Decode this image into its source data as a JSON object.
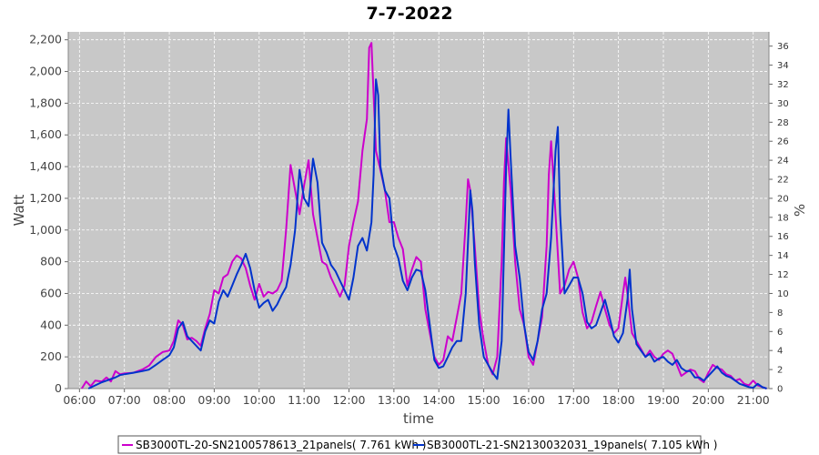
{
  "chart_data": {
    "type": "line",
    "title": "7-7-2022",
    "xlabel": "time",
    "ylabel": "Watt",
    "y2label": "%",
    "xlim": [
      5.75,
      21.35
    ],
    "ylim": [
      0,
      2250
    ],
    "y2lim": [
      0,
      37.5
    ],
    "x_ticks": [
      "06:00",
      "07:00",
      "08:00",
      "09:00",
      "10:00",
      "11:00",
      "12:00",
      "13:00",
      "14:00",
      "15:00",
      "16:00",
      "17:00",
      "18:00",
      "19:00",
      "20:00",
      "21:00"
    ],
    "y_ticks": [
      "0",
      "200",
      "400",
      "600",
      "800",
      "1,000",
      "1,200",
      "1,400",
      "1,600",
      "1,800",
      "2,000",
      "2,200"
    ],
    "y2_ticks": [
      "0",
      "2",
      "4",
      "6",
      "8",
      "10",
      "12",
      "14",
      "16",
      "18",
      "20",
      "22",
      "24",
      "26",
      "28",
      "30",
      "32",
      "34",
      "36"
    ],
    "grid": true,
    "background": "#c8c8c8",
    "legend_position": "bottom",
    "series": [
      {
        "name": "SB3000TL-20-SN2100578613_21panels( 7.761 kWh )",
        "color": "#cc00cc",
        "points": [
          [
            6.05,
            0
          ],
          [
            6.15,
            45
          ],
          [
            6.25,
            15
          ],
          [
            6.35,
            50
          ],
          [
            6.5,
            45
          ],
          [
            6.6,
            70
          ],
          [
            6.7,
            45
          ],
          [
            6.8,
            110
          ],
          [
            6.9,
            90
          ],
          [
            7.0,
            95
          ],
          [
            7.2,
            100
          ],
          [
            7.4,
            120
          ],
          [
            7.55,
            145
          ],
          [
            7.7,
            200
          ],
          [
            7.85,
            230
          ],
          [
            8.0,
            240
          ],
          [
            8.1,
            300
          ],
          [
            8.2,
            430
          ],
          [
            8.3,
            400
          ],
          [
            8.4,
            310
          ],
          [
            8.5,
            320
          ],
          [
            8.6,
            300
          ],
          [
            8.7,
            270
          ],
          [
            8.8,
            380
          ],
          [
            8.9,
            470
          ],
          [
            9.0,
            620
          ],
          [
            9.1,
            600
          ],
          [
            9.2,
            700
          ],
          [
            9.3,
            720
          ],
          [
            9.4,
            800
          ],
          [
            9.5,
            840
          ],
          [
            9.6,
            820
          ],
          [
            9.7,
            760
          ],
          [
            9.8,
            650
          ],
          [
            9.9,
            560
          ],
          [
            10.0,
            660
          ],
          [
            10.1,
            580
          ],
          [
            10.2,
            610
          ],
          [
            10.3,
            600
          ],
          [
            10.4,
            620
          ],
          [
            10.5,
            680
          ],
          [
            10.6,
            1000
          ],
          [
            10.7,
            1410
          ],
          [
            10.8,
            1250
          ],
          [
            10.9,
            1100
          ],
          [
            11.0,
            1280
          ],
          [
            11.1,
            1440
          ],
          [
            11.2,
            1100
          ],
          [
            11.3,
            950
          ],
          [
            11.4,
            800
          ],
          [
            11.5,
            780
          ],
          [
            11.6,
            700
          ],
          [
            11.7,
            640
          ],
          [
            11.8,
            580
          ],
          [
            11.9,
            650
          ],
          [
            12.0,
            900
          ],
          [
            12.1,
            1050
          ],
          [
            12.2,
            1180
          ],
          [
            12.3,
            1500
          ],
          [
            12.4,
            1700
          ],
          [
            12.45,
            2150
          ],
          [
            12.5,
            2180
          ],
          [
            12.55,
            1850
          ],
          [
            12.6,
            1500
          ],
          [
            12.7,
            1380
          ],
          [
            12.8,
            1250
          ],
          [
            12.9,
            1050
          ],
          [
            13.0,
            1050
          ],
          [
            13.1,
            950
          ],
          [
            13.2,
            880
          ],
          [
            13.3,
            650
          ],
          [
            13.4,
            750
          ],
          [
            13.5,
            830
          ],
          [
            13.6,
            800
          ],
          [
            13.7,
            500
          ],
          [
            13.8,
            350
          ],
          [
            13.9,
            200
          ],
          [
            14.0,
            150
          ],
          [
            14.1,
            180
          ],
          [
            14.2,
            330
          ],
          [
            14.3,
            300
          ],
          [
            14.4,
            450
          ],
          [
            14.5,
            600
          ],
          [
            14.6,
            1050
          ],
          [
            14.65,
            1320
          ],
          [
            14.7,
            1250
          ],
          [
            14.8,
            900
          ],
          [
            14.9,
            500
          ],
          [
            15.0,
            300
          ],
          [
            15.1,
            150
          ],
          [
            15.2,
            90
          ],
          [
            15.3,
            200
          ],
          [
            15.4,
            800
          ],
          [
            15.45,
            1300
          ],
          [
            15.5,
            1580
          ],
          [
            15.6,
            1250
          ],
          [
            15.7,
            800
          ],
          [
            15.8,
            500
          ],
          [
            15.9,
            400
          ],
          [
            16.0,
            200
          ],
          [
            16.1,
            150
          ],
          [
            16.2,
            300
          ],
          [
            16.3,
            450
          ],
          [
            16.4,
            900
          ],
          [
            16.45,
            1350
          ],
          [
            16.5,
            1560
          ],
          [
            16.6,
            1100
          ],
          [
            16.7,
            600
          ],
          [
            16.8,
            650
          ],
          [
            16.9,
            750
          ],
          [
            17.0,
            800
          ],
          [
            17.1,
            700
          ],
          [
            17.2,
            480
          ],
          [
            17.3,
            380
          ],
          [
            17.4,
            420
          ],
          [
            17.5,
            520
          ],
          [
            17.6,
            610
          ],
          [
            17.7,
            500
          ],
          [
            17.8,
            400
          ],
          [
            17.9,
            350
          ],
          [
            18.0,
            380
          ],
          [
            18.1,
            600
          ],
          [
            18.15,
            700
          ],
          [
            18.2,
            600
          ],
          [
            18.3,
            350
          ],
          [
            18.4,
            300
          ],
          [
            18.5,
            250
          ],
          [
            18.6,
            200
          ],
          [
            18.7,
            240
          ],
          [
            18.8,
            200
          ],
          [
            18.9,
            180
          ],
          [
            19.0,
            220
          ],
          [
            19.1,
            240
          ],
          [
            19.2,
            220
          ],
          [
            19.3,
            150
          ],
          [
            19.4,
            80
          ],
          [
            19.5,
            100
          ],
          [
            19.6,
            120
          ],
          [
            19.7,
            110
          ],
          [
            19.8,
            60
          ],
          [
            19.9,
            40
          ],
          [
            20.0,
            100
          ],
          [
            20.1,
            150
          ],
          [
            20.2,
            130
          ],
          [
            20.3,
            120
          ],
          [
            20.4,
            90
          ],
          [
            20.5,
            80
          ],
          [
            20.6,
            50
          ],
          [
            20.7,
            60
          ],
          [
            20.8,
            30
          ],
          [
            20.9,
            20
          ],
          [
            21.0,
            50
          ],
          [
            21.1,
            20
          ],
          [
            21.2,
            10
          ],
          [
            21.3,
            0
          ]
        ]
      },
      {
        "name": "SB3000TL-21-SN2130032031_19panels( 7.105 kWh )",
        "color": "#0033cc",
        "points": [
          [
            6.2,
            0
          ],
          [
            6.35,
            20
          ],
          [
            6.5,
            40
          ],
          [
            6.6,
            50
          ],
          [
            6.7,
            60
          ],
          [
            6.8,
            70
          ],
          [
            6.9,
            85
          ],
          [
            7.0,
            90
          ],
          [
            7.2,
            100
          ],
          [
            7.4,
            110
          ],
          [
            7.55,
            120
          ],
          [
            7.7,
            150
          ],
          [
            7.85,
            180
          ],
          [
            8.0,
            210
          ],
          [
            8.1,
            260
          ],
          [
            8.2,
            380
          ],
          [
            8.3,
            420
          ],
          [
            8.4,
            330
          ],
          [
            8.5,
            300
          ],
          [
            8.6,
            270
          ],
          [
            8.7,
            240
          ],
          [
            8.8,
            360
          ],
          [
            8.9,
            430
          ],
          [
            9.0,
            410
          ],
          [
            9.1,
            550
          ],
          [
            9.2,
            620
          ],
          [
            9.3,
            580
          ],
          [
            9.4,
            650
          ],
          [
            9.5,
            720
          ],
          [
            9.6,
            780
          ],
          [
            9.7,
            850
          ],
          [
            9.8,
            760
          ],
          [
            9.9,
            620
          ],
          [
            10.0,
            510
          ],
          [
            10.1,
            540
          ],
          [
            10.2,
            560
          ],
          [
            10.3,
            490
          ],
          [
            10.4,
            530
          ],
          [
            10.5,
            590
          ],
          [
            10.6,
            640
          ],
          [
            10.7,
            780
          ],
          [
            10.8,
            1000
          ],
          [
            10.9,
            1380
          ],
          [
            11.0,
            1200
          ],
          [
            11.1,
            1150
          ],
          [
            11.2,
            1450
          ],
          [
            11.3,
            1300
          ],
          [
            11.4,
            920
          ],
          [
            11.5,
            860
          ],
          [
            11.6,
            780
          ],
          [
            11.7,
            740
          ],
          [
            11.8,
            680
          ],
          [
            11.9,
            620
          ],
          [
            12.0,
            560
          ],
          [
            12.1,
            700
          ],
          [
            12.2,
            900
          ],
          [
            12.3,
            950
          ],
          [
            12.4,
            870
          ],
          [
            12.5,
            1050
          ],
          [
            12.55,
            1350
          ],
          [
            12.6,
            1950
          ],
          [
            12.65,
            1850
          ],
          [
            12.7,
            1400
          ],
          [
            12.8,
            1250
          ],
          [
            12.9,
            1200
          ],
          [
            13.0,
            900
          ],
          [
            13.1,
            820
          ],
          [
            13.2,
            680
          ],
          [
            13.3,
            620
          ],
          [
            13.4,
            700
          ],
          [
            13.5,
            750
          ],
          [
            13.6,
            740
          ],
          [
            13.7,
            620
          ],
          [
            13.8,
            400
          ],
          [
            13.9,
            180
          ],
          [
            14.0,
            130
          ],
          [
            14.1,
            140
          ],
          [
            14.2,
            200
          ],
          [
            14.3,
            260
          ],
          [
            14.4,
            300
          ],
          [
            14.5,
            300
          ],
          [
            14.6,
            600
          ],
          [
            14.7,
            1250
          ],
          [
            14.75,
            1120
          ],
          [
            14.8,
            800
          ],
          [
            14.9,
            400
          ],
          [
            15.0,
            200
          ],
          [
            15.1,
            150
          ],
          [
            15.2,
            100
          ],
          [
            15.3,
            60
          ],
          [
            15.4,
            300
          ],
          [
            15.5,
            1400
          ],
          [
            15.55,
            1760
          ],
          [
            15.6,
            1450
          ],
          [
            15.7,
            900
          ],
          [
            15.8,
            700
          ],
          [
            15.9,
            400
          ],
          [
            16.0,
            230
          ],
          [
            16.1,
            180
          ],
          [
            16.2,
            300
          ],
          [
            16.3,
            500
          ],
          [
            16.4,
            600
          ],
          [
            16.5,
            950
          ],
          [
            16.6,
            1500
          ],
          [
            16.65,
            1650
          ],
          [
            16.7,
            1100
          ],
          [
            16.8,
            600
          ],
          [
            16.9,
            650
          ],
          [
            17.0,
            700
          ],
          [
            17.1,
            700
          ],
          [
            17.2,
            600
          ],
          [
            17.3,
            420
          ],
          [
            17.4,
            380
          ],
          [
            17.5,
            400
          ],
          [
            17.6,
            480
          ],
          [
            17.7,
            560
          ],
          [
            17.8,
            450
          ],
          [
            17.9,
            330
          ],
          [
            18.0,
            290
          ],
          [
            18.1,
            350
          ],
          [
            18.2,
            560
          ],
          [
            18.25,
            750
          ],
          [
            18.3,
            500
          ],
          [
            18.4,
            280
          ],
          [
            18.5,
            240
          ],
          [
            18.6,
            200
          ],
          [
            18.7,
            220
          ],
          [
            18.8,
            170
          ],
          [
            18.9,
            190
          ],
          [
            19.0,
            200
          ],
          [
            19.1,
            170
          ],
          [
            19.2,
            150
          ],
          [
            19.3,
            180
          ],
          [
            19.4,
            130
          ],
          [
            19.5,
            110
          ],
          [
            19.6,
            110
          ],
          [
            19.7,
            70
          ],
          [
            19.8,
            70
          ],
          [
            19.9,
            50
          ],
          [
            20.0,
            80
          ],
          [
            20.1,
            110
          ],
          [
            20.2,
            140
          ],
          [
            20.3,
            100
          ],
          [
            20.4,
            80
          ],
          [
            20.5,
            70
          ],
          [
            20.6,
            50
          ],
          [
            20.7,
            30
          ],
          [
            20.8,
            20
          ],
          [
            20.9,
            10
          ],
          [
            21.0,
            5
          ],
          [
            21.1,
            30
          ],
          [
            21.2,
            10
          ],
          [
            21.3,
            0
          ]
        ]
      }
    ]
  }
}
